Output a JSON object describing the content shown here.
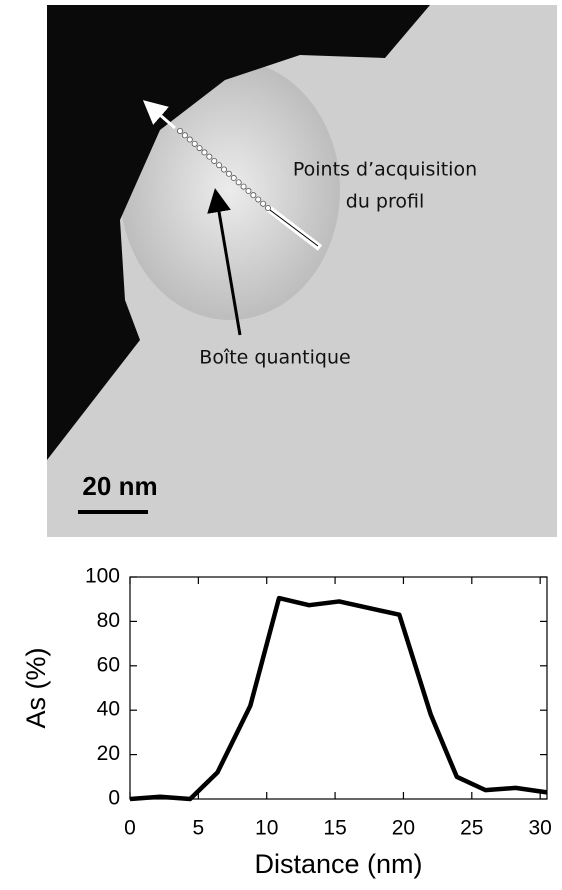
{
  "image_labels": {
    "points_line1": "Points d’acquisition",
    "points_line2": "du profil",
    "dot": "Boîte quantique",
    "scale": "20 nm"
  },
  "chart_data": {
    "type": "line",
    "xlabel": "Distance (nm)",
    "ylabel": "As (%)",
    "x": [
      0,
      2.2,
      4.4,
      6.4,
      8.8,
      10.9,
      13.1,
      15.3,
      19.7,
      22,
      23.9,
      26,
      28.2,
      30.5
    ],
    "values": [
      0,
      1,
      0,
      12,
      42,
      90.5,
      87.3,
      89,
      83,
      38,
      10,
      4,
      5,
      3
    ],
    "color": "#000000",
    "xlim": [
      0,
      30.5
    ],
    "xticks": [
      0,
      5,
      10,
      15,
      20,
      25,
      30
    ],
    "ylim": [
      0,
      100
    ],
    "yticks": [
      0,
      20,
      40,
      60,
      80,
      100
    ],
    "grid": false
  }
}
